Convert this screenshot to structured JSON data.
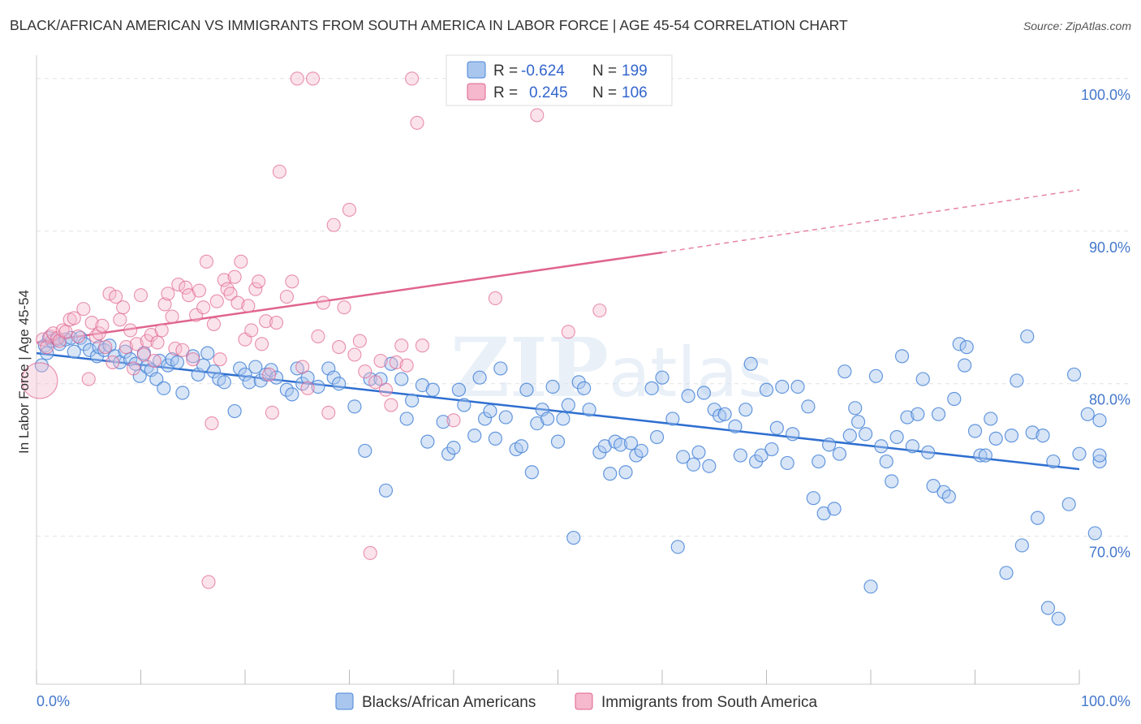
{
  "title": "BLACK/AFRICAN AMERICAN VS IMMIGRANTS FROM SOUTH AMERICA IN LABOR FORCE | AGE 45-54 CORRELATION CHART",
  "source": "Source: ZipAtlas.com",
  "watermark": "ZIPatlas",
  "colors": {
    "blue": "#4a86d8",
    "blue_fill": "#a9c6ee",
    "pink": "#e0648e",
    "pink_fill": "#f5b8cc",
    "axis_label": "#4477cc",
    "grid": "#e2e2e2"
  },
  "legend": {
    "r_label": "R =",
    "n_label": "N =",
    "rows": [
      {
        "r": "-0.624",
        "n": "199"
      },
      {
        "r": "0.245",
        "n": "106"
      }
    ]
  },
  "bottom_legend": [
    "Blacks/African Americans",
    "Immigrants from South America"
  ],
  "chart_data": {
    "type": "scatter",
    "title": "BLACK/AFRICAN AMERICAN VS IMMIGRANTS FROM SOUTH AMERICA IN LABOR FORCE | AGE 45-54 CORRELATION CHART",
    "xlabel": "",
    "ylabel": "In Labor Force | Age 45-54",
    "x_tick_labels": [
      "0.0%",
      "100.0%"
    ],
    "y_tick_labels": [
      "70.0%",
      "80.0%",
      "90.0%",
      "100.0%"
    ],
    "y_ticks": [
      70,
      80,
      90,
      100
    ],
    "xlim": [
      0,
      100
    ],
    "ylim": [
      60.3,
      101
    ],
    "grid": true,
    "legend_position": "top-center",
    "series": [
      {
        "name": "Blacks/African Americans",
        "color": "#4a86d8",
        "r": -0.624,
        "n": 199,
        "trend": {
          "x": [
            0,
            100
          ],
          "y": [
            82.0,
            74.4
          ],
          "style": "solid"
        },
        "points": [
          [
            0.5,
            81.2
          ],
          [
            0.8,
            82.5
          ],
          [
            1,
            82
          ],
          [
            1.2,
            83
          ],
          [
            1.5,
            82.8
          ],
          [
            2,
            82.9
          ],
          [
            2.2,
            82.6
          ],
          [
            2.8,
            82.9
          ],
          [
            3.3,
            83.0
          ],
          [
            3.6,
            82.1
          ],
          [
            4.2,
            83.0
          ],
          [
            4.6,
            82.6
          ],
          [
            5.1,
            82.2
          ],
          [
            5.8,
            81.8
          ],
          [
            6.0,
            82.4
          ],
          [
            6.5,
            82.2
          ],
          [
            7,
            82.5
          ],
          [
            7.5,
            81.8
          ],
          [
            8,
            81.4
          ],
          [
            8.5,
            82.1
          ],
          [
            9,
            81.6
          ],
          [
            9.5,
            81.3
          ],
          [
            9.9,
            80.5
          ],
          [
            10.3,
            82.0
          ],
          [
            10.6,
            81.1
          ],
          [
            11,
            80.9
          ],
          [
            11.5,
            80.3
          ],
          [
            11.8,
            81.5
          ],
          [
            12.2,
            79.7
          ],
          [
            12.6,
            81.2
          ],
          [
            13,
            81.6
          ],
          [
            13.5,
            81.4
          ],
          [
            14,
            79.4
          ],
          [
            15,
            81.8
          ],
          [
            15.5,
            80.6
          ],
          [
            16,
            81.2
          ],
          [
            16.4,
            82.0
          ],
          [
            17,
            80.8
          ],
          [
            17.5,
            80.3
          ],
          [
            18,
            80.1
          ],
          [
            19,
            78.2
          ],
          [
            19.5,
            81.0
          ],
          [
            20,
            80.6
          ],
          [
            20.4,
            80.1
          ],
          [
            21,
            81.1
          ],
          [
            21.5,
            80.2
          ],
          [
            22,
            80.6
          ],
          [
            22.5,
            80.9
          ],
          [
            23,
            80.4
          ],
          [
            24,
            79.6
          ],
          [
            24.5,
            79.3
          ],
          [
            25,
            81.0
          ],
          [
            25.5,
            80.0
          ],
          [
            26,
            80.4
          ],
          [
            27,
            79.8
          ],
          [
            28,
            81.0
          ],
          [
            28.5,
            80.4
          ],
          [
            29,
            80.0
          ],
          [
            30.5,
            78.5
          ],
          [
            32,
            80.3
          ],
          [
            31.5,
            75.6
          ],
          [
            33,
            80.3
          ],
          [
            33.5,
            73.0
          ],
          [
            34,
            81.3
          ],
          [
            35,
            80.3
          ],
          [
            35.5,
            77.7
          ],
          [
            36,
            78.9
          ],
          [
            37,
            79.9
          ],
          [
            37.5,
            76.2
          ],
          [
            38,
            79.6
          ],
          [
            39,
            77.5
          ],
          [
            39.5,
            75.4
          ],
          [
            40,
            75.8
          ],
          [
            40.5,
            79.6
          ],
          [
            41,
            78.6
          ],
          [
            42,
            76.6
          ],
          [
            42.5,
            80.4
          ],
          [
            43,
            77.7
          ],
          [
            43.5,
            78.2
          ],
          [
            44,
            76.4
          ],
          [
            44.5,
            81.0
          ],
          [
            45,
            77.8
          ],
          [
            46,
            75.7
          ],
          [
            46.5,
            75.9
          ],
          [
            47,
            79.6
          ],
          [
            47.5,
            74.2
          ],
          [
            48,
            77.4
          ],
          [
            48.5,
            78.3
          ],
          [
            49,
            77.7
          ],
          [
            49.5,
            79.8
          ],
          [
            50,
            76.2
          ],
          [
            50.5,
            77.7
          ],
          [
            51,
            78.6
          ],
          [
            51.5,
            69.9
          ],
          [
            52,
            80.1
          ],
          [
            52.5,
            79.7
          ],
          [
            53,
            78.3
          ],
          [
            54,
            75.5
          ],
          [
            54.5,
            75.9
          ],
          [
            55,
            74.1
          ],
          [
            55.5,
            76.2
          ],
          [
            56,
            76.0
          ],
          [
            56.5,
            74.2
          ],
          [
            57,
            76.1
          ],
          [
            57.5,
            75.3
          ],
          [
            58,
            75.6
          ],
          [
            59,
            79.7
          ],
          [
            59.5,
            76.5
          ],
          [
            60,
            80.4
          ],
          [
            61,
            77.7
          ],
          [
            61.5,
            69.3
          ],
          [
            62,
            75.2
          ],
          [
            62.5,
            79.2
          ],
          [
            63,
            74.7
          ],
          [
            63.5,
            75.5
          ],
          [
            64,
            79.4
          ],
          [
            64.5,
            74.6
          ],
          [
            65,
            78.3
          ],
          [
            65.5,
            77.9
          ],
          [
            66,
            78.0
          ],
          [
            67,
            77.2
          ],
          [
            67.5,
            75.3
          ],
          [
            68,
            78.3
          ],
          [
            68.5,
            81.3
          ],
          [
            69,
            74.9
          ],
          [
            69.5,
            75.3
          ],
          [
            70,
            79.6
          ],
          [
            70.5,
            75.7
          ],
          [
            71,
            77.1
          ],
          [
            71.5,
            79.8
          ],
          [
            72,
            74.8
          ],
          [
            72.5,
            76.7
          ],
          [
            73,
            79.8
          ],
          [
            74,
            78.5
          ],
          [
            74.5,
            72.5
          ],
          [
            75,
            74.9
          ],
          [
            75.5,
            71.5
          ],
          [
            76,
            76.0
          ],
          [
            76.5,
            71.8
          ],
          [
            77,
            75.4
          ],
          [
            77.5,
            80.8
          ],
          [
            78,
            76.6
          ],
          [
            78.5,
            78.4
          ],
          [
            78.8,
            77.5
          ],
          [
            79.5,
            76.7
          ],
          [
            80,
            66.7
          ],
          [
            80.5,
            80.5
          ],
          [
            81,
            75.9
          ],
          [
            81.5,
            74.9
          ],
          [
            82,
            73.6
          ],
          [
            82.5,
            76.5
          ],
          [
            83,
            81.8
          ],
          [
            83.5,
            77.8
          ],
          [
            84,
            75.9
          ],
          [
            84.5,
            78.0
          ],
          [
            85,
            80.3
          ],
          [
            85.5,
            75.5
          ],
          [
            86,
            73.3
          ],
          [
            86.5,
            78.0
          ],
          [
            87,
            72.9
          ],
          [
            87.5,
            72.6
          ],
          [
            88,
            79.0
          ],
          [
            88.5,
            82.6
          ],
          [
            89,
            81.2
          ],
          [
            89.2,
            82.4
          ],
          [
            90,
            76.9
          ],
          [
            90.5,
            75.3
          ],
          [
            91,
            75.3
          ],
          [
            91.5,
            77.7
          ],
          [
            92,
            76.4
          ],
          [
            93,
            67.6
          ],
          [
            93.5,
            76.6
          ],
          [
            94,
            80.2
          ],
          [
            94.5,
            69.4
          ],
          [
            95,
            83.1
          ],
          [
            95.5,
            76.8
          ],
          [
            96,
            71.2
          ],
          [
            96.5,
            76.6
          ],
          [
            97,
            65.3
          ],
          [
            97.5,
            74.9
          ],
          [
            98,
            64.6
          ],
          [
            99,
            72.1
          ],
          [
            99.5,
            80.6
          ],
          [
            100,
            75.4
          ],
          [
            100.8,
            78.0
          ],
          [
            101.5,
            70.2
          ],
          [
            102,
            74.9
          ],
          [
            102.5,
            75.3
          ],
          [
            103,
            77.6
          ]
        ]
      },
      {
        "name": "Immigrants from South America",
        "color": "#e0648e",
        "r": 0.245,
        "n": 106,
        "trend": {
          "x": [
            0,
            60,
            100
          ],
          "y": [
            82.7,
            88.6,
            92.7
          ],
          "style": "solid-then-dashed"
        },
        "points": [
          [
            0.3,
            80.2
          ],
          [
            0.6,
            82.9
          ],
          [
            1,
            82.4
          ],
          [
            1.3,
            83.1
          ],
          [
            1.6,
            83.3
          ],
          [
            2,
            83.0
          ],
          [
            2.2,
            82.8
          ],
          [
            2.5,
            83.5
          ],
          [
            2.8,
            83.4
          ],
          [
            3.2,
            84.2
          ],
          [
            3.6,
            84.3
          ],
          [
            4,
            83.1
          ],
          [
            4.5,
            84.9
          ],
          [
            5,
            80.3
          ],
          [
            5.3,
            84.0
          ],
          [
            5.7,
            83.1
          ],
          [
            6,
            83.3
          ],
          [
            6.3,
            83.8
          ],
          [
            6.6,
            82.4
          ],
          [
            7,
            85.9
          ],
          [
            7.3,
            81.4
          ],
          [
            7.6,
            85.7
          ],
          [
            8,
            84.2
          ],
          [
            8.3,
            85.0
          ],
          [
            8.6,
            82.4
          ],
          [
            9,
            83.5
          ],
          [
            9.3,
            81.0
          ],
          [
            9.6,
            82.6
          ],
          [
            10,
            85.8
          ],
          [
            10.3,
            81.9
          ],
          [
            10.6,
            82.8
          ],
          [
            11,
            83.2
          ],
          [
            11.3,
            81.5
          ],
          [
            11.6,
            82.7
          ],
          [
            12,
            83.5
          ],
          [
            12.3,
            85.2
          ],
          [
            12.6,
            85.9
          ],
          [
            13,
            84.4
          ],
          [
            13.3,
            82.3
          ],
          [
            13.6,
            86.5
          ],
          [
            14,
            82.2
          ],
          [
            14.3,
            86.3
          ],
          [
            14.6,
            85.8
          ],
          [
            15,
            81.6
          ],
          [
            15.3,
            84.5
          ],
          [
            15.6,
            86.1
          ],
          [
            16,
            85.0
          ],
          [
            16.3,
            88.0
          ],
          [
            16.5,
            67.0
          ],
          [
            16.8,
            77.4
          ],
          [
            17,
            83.9
          ],
          [
            17.3,
            85.4
          ],
          [
            17.6,
            81.6
          ],
          [
            18,
            86.8
          ],
          [
            18.3,
            86.2
          ],
          [
            18.6,
            85.9
          ],
          [
            19,
            87.0
          ],
          [
            19.3,
            85.3
          ],
          [
            19.6,
            88.0
          ],
          [
            20,
            82.9
          ],
          [
            20.3,
            85.1
          ],
          [
            20.6,
            83.5
          ],
          [
            21,
            86.2
          ],
          [
            21.3,
            86.7
          ],
          [
            21.6,
            82.6
          ],
          [
            22,
            84.1
          ],
          [
            22.3,
            80.6
          ],
          [
            22.6,
            78.1
          ],
          [
            23,
            84.0
          ],
          [
            23.3,
            93.9
          ],
          [
            24,
            85.7
          ],
          [
            24.5,
            86.7
          ],
          [
            25,
            100.0
          ],
          [
            25.5,
            81.1
          ],
          [
            26,
            79.7
          ],
          [
            26.5,
            100.0
          ],
          [
            27,
            83.1
          ],
          [
            27.5,
            85.3
          ],
          [
            28,
            78.1
          ],
          [
            28.5,
            90.4
          ],
          [
            29,
            82.4
          ],
          [
            29.5,
            85.0
          ],
          [
            30,
            91.4
          ],
          [
            30.5,
            81.9
          ],
          [
            31,
            82.8
          ],
          [
            31.5,
            80.8
          ],
          [
            32,
            68.9
          ],
          [
            32.5,
            80.1
          ],
          [
            33,
            81.5
          ],
          [
            33.5,
            79.6
          ],
          [
            34,
            78.6
          ],
          [
            34.5,
            81.4
          ],
          [
            35,
            82.5
          ],
          [
            35.5,
            81.2
          ],
          [
            36,
            100.0
          ],
          [
            36.5,
            97.1
          ],
          [
            37,
            82.5
          ],
          [
            40,
            77.6
          ],
          [
            44,
            85.6
          ],
          [
            48,
            97.6
          ],
          [
            51,
            83.4
          ],
          [
            54,
            84.8
          ],
          [
            56,
            100.0
          ]
        ]
      }
    ]
  }
}
